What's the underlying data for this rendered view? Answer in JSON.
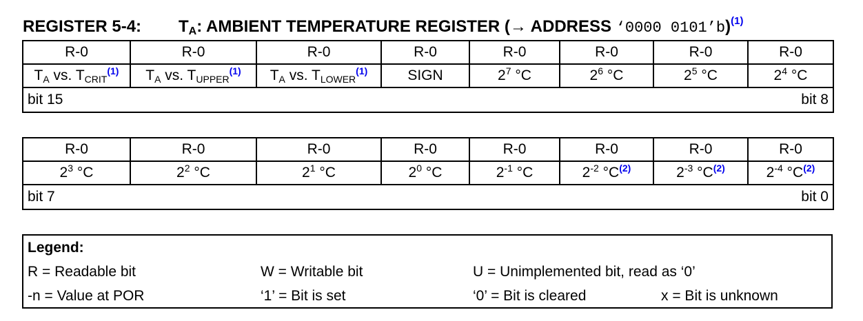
{
  "title": {
    "register_id": "REGISTER 5-4:",
    "t_base": "T",
    "t_sub": "A",
    "text": ": AMBIENT TEMPERATURE REGISTER (→ ADDRESS ",
    "address": "‘0000 0101’b",
    "close": ")",
    "footnote": "(1)"
  },
  "high_byte": {
    "access": [
      "R-0",
      "R-0",
      "R-0",
      "R-0",
      "R-0",
      "R-0",
      "R-0",
      "R-0"
    ],
    "fields": {
      "crit": {
        "pre": "T",
        "pre_sub": "A",
        "mid": " vs. T",
        "sub": "CRIT",
        "note": "(1)"
      },
      "upper": {
        "pre": "T",
        "pre_sub": "A",
        "mid": " vs. T",
        "sub": "UPPER",
        "note": "(1)"
      },
      "lower": {
        "pre": "T",
        "pre_sub": "A",
        "mid": " vs. T",
        "sub": "LOWER",
        "note": "(1)"
      },
      "sign": "SIGN",
      "b11": {
        "base": "2",
        "exp": "7",
        "unit": " °C"
      },
      "b10": {
        "base": "2",
        "exp": "6",
        "unit": " °C"
      },
      "b9": {
        "base": "2",
        "exp": "5",
        "unit": " °C"
      },
      "b8": {
        "base": "2",
        "exp": "4",
        "unit": " °C"
      }
    },
    "bit_left": "bit 15",
    "bit_right": "bit 8"
  },
  "low_byte": {
    "access": [
      "R-0",
      "R-0",
      "R-0",
      "R-0",
      "R-0",
      "R-0",
      "R-0",
      "R-0"
    ],
    "fields": [
      {
        "base": "2",
        "exp": "3",
        "unit": " °C",
        "note": ""
      },
      {
        "base": "2",
        "exp": "2",
        "unit": " °C",
        "note": ""
      },
      {
        "base": "2",
        "exp": "1",
        "unit": " °C",
        "note": ""
      },
      {
        "base": "2",
        "exp": "0",
        "unit": " °C",
        "note": ""
      },
      {
        "base": "2",
        "exp": "-1",
        "unit": " °C",
        "note": ""
      },
      {
        "base": "2",
        "exp": "-2",
        "unit": " °C",
        "note": "(2)"
      },
      {
        "base": "2",
        "exp": "-3",
        "unit": " °C",
        "note": "(2)"
      },
      {
        "base": "2",
        "exp": "-4",
        "unit": " °C",
        "note": "(2)"
      }
    ],
    "bit_left": "bit 7",
    "bit_right": "bit 0"
  },
  "legend": {
    "title": "Legend:",
    "readable": "R = Readable bit",
    "writable": "W = Writable bit",
    "unimplemented": "U = Unimplemented bit, read as ‘0’",
    "por": "-n = Value at POR",
    "set": "‘1’ = Bit is set",
    "cleared": "‘0’ = Bit is cleared",
    "unknown": "x = Bit is unknown"
  },
  "colors": {
    "footnote": "#0000ee",
    "border": "#000000"
  }
}
